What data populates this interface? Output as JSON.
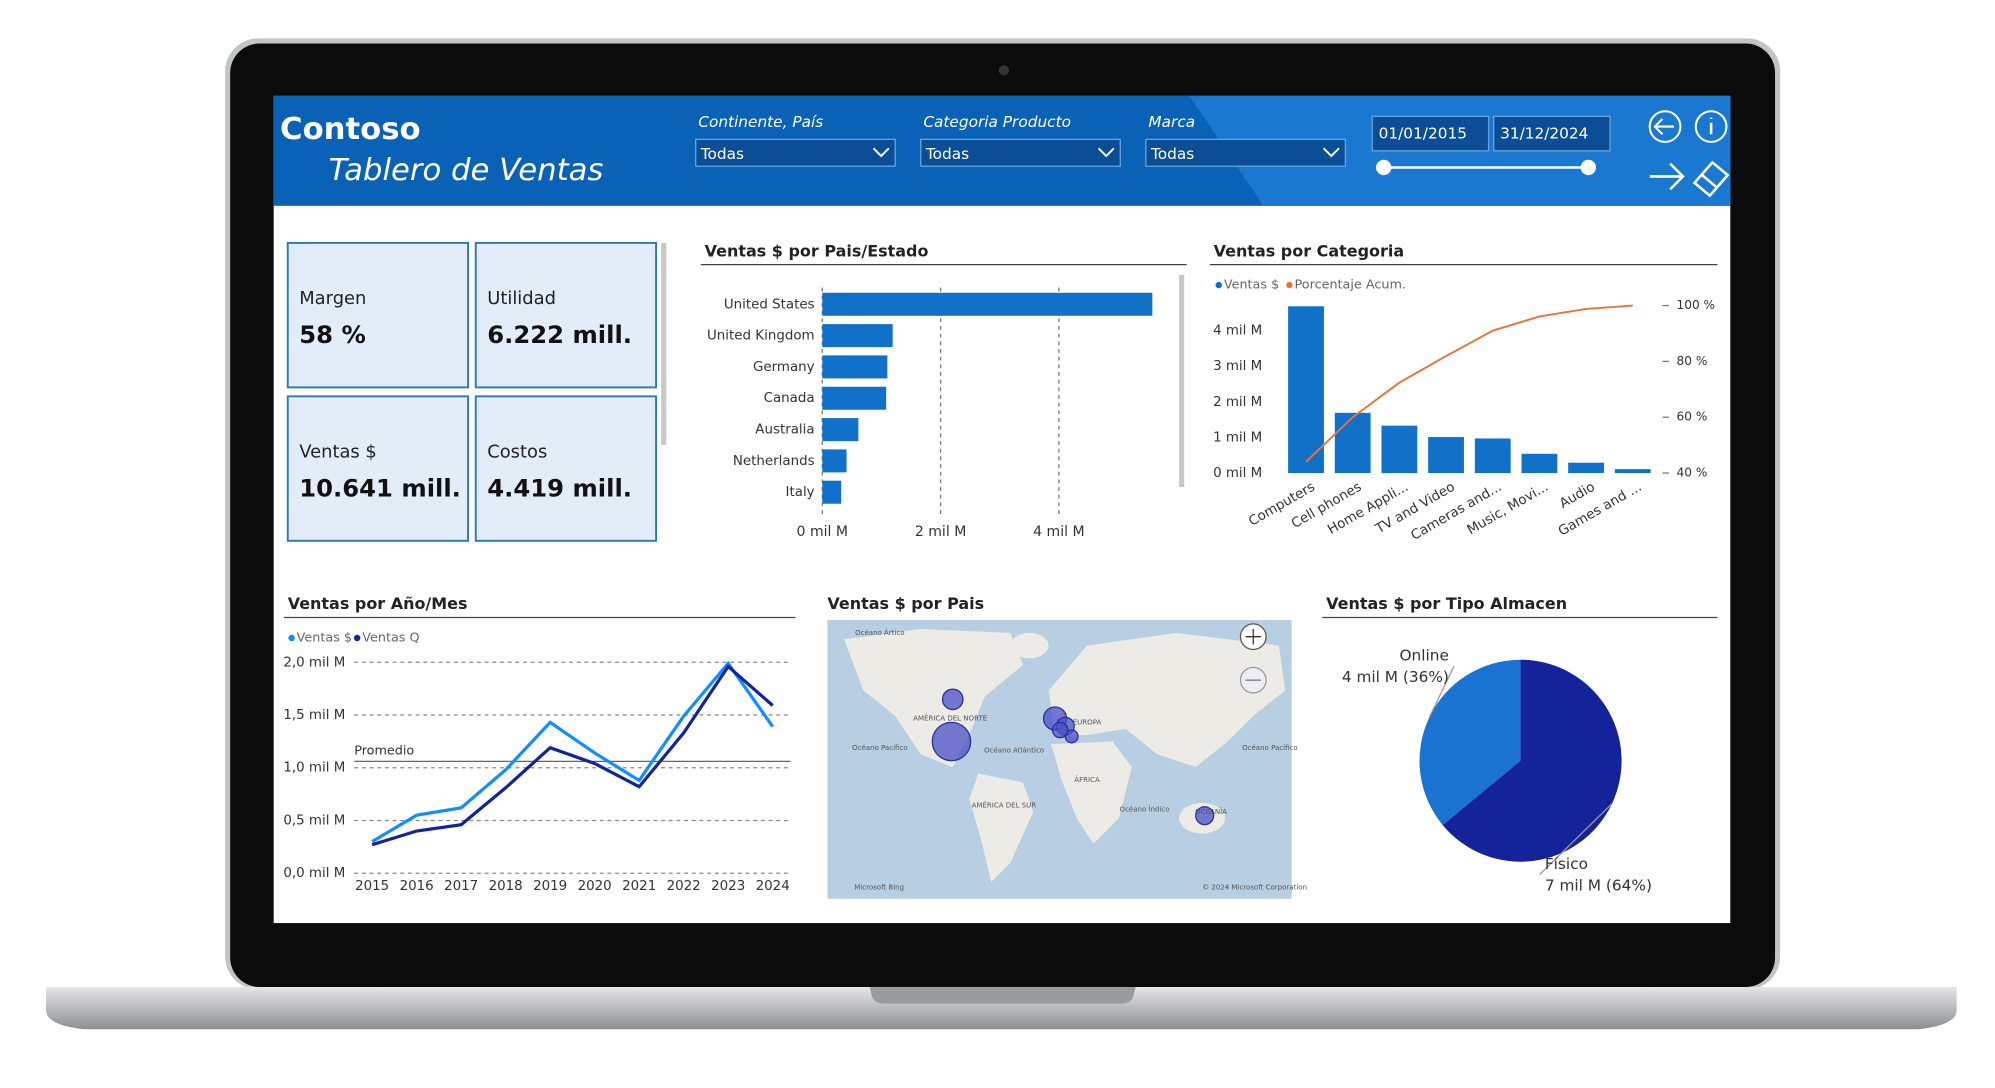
{
  "header": {
    "logo": "Contoso",
    "title": "Tablero de Ventas"
  },
  "filters": [
    {
      "label": "Continente, País",
      "value": "Todas"
    },
    {
      "label": "Categoria Producto",
      "value": "Todas"
    },
    {
      "label": "Marca",
      "value": "Todas"
    }
  ],
  "date_range": [
    "01/01/2015",
    "31/12/2024"
  ],
  "kpis": [
    {
      "label": "Margen",
      "value": "58 %"
    },
    {
      "label": "Utilidad",
      "value": "6.222 mill."
    },
    {
      "label": "Ventas $",
      "value": "10.641 mill."
    },
    {
      "label": "Costos",
      "value": "4.419 mill."
    }
  ],
  "chart_data": [
    {
      "type": "bar",
      "horizontal": true,
      "title": "Ventas $ por Pais/Estado",
      "categories": [
        "United States",
        "United Kingdom",
        "Germany",
        "Canada",
        "Australia",
        "Netherlands",
        "Italy"
      ],
      "values": [
        5.58,
        1.19,
        1.1,
        1.08,
        0.61,
        0.41,
        0.32
      ],
      "color": "#1170c8",
      "xlim": [
        0,
        6
      ],
      "xticks": [
        {
          "value": 0,
          "label": "0 mil M"
        },
        {
          "value": 2,
          "label": "2 mil M"
        },
        {
          "value": 4,
          "label": "4 mil M"
        }
      ],
      "grid": true
    },
    {
      "type": "combo",
      "title": "Ventas por Categoria",
      "categories": [
        "Computers",
        "Cell phones",
        "Home Appli...",
        "TV and Video",
        "Cameras and...",
        "Music, Movi...",
        "Audio",
        "Games and ..."
      ],
      "series": [
        {
          "name": "Ventas $",
          "type": "bar",
          "color": "#1170c8",
          "values": [
            4.68,
            1.69,
            1.33,
            1.01,
            0.97,
            0.54,
            0.29,
            0.11
          ]
        },
        {
          "name": "Porcentaje Acum.",
          "type": "line",
          "axis": "y2",
          "color": "#e8743b",
          "values": [
            44,
            60,
            72.4,
            81.9,
            91,
            96.1,
            98.8,
            100
          ]
        }
      ],
      "ylim": [
        0,
        4.7
      ],
      "yticks": [
        {
          "value": 0,
          "label": "0 mil M"
        },
        {
          "value": 1,
          "label": "1 mil M"
        },
        {
          "value": 2,
          "label": "2 mil M"
        },
        {
          "value": 3,
          "label": "3 mil M"
        },
        {
          "value": 4,
          "label": "4 mil M"
        }
      ],
      "y2lim": [
        40,
        100
      ],
      "y2ticks": [
        {
          "value": 40,
          "label": "40 %"
        },
        {
          "value": 60,
          "label": "60 %"
        },
        {
          "value": 80,
          "label": "80 %"
        },
        {
          "value": 100,
          "label": "100 %"
        }
      ]
    },
    {
      "type": "line",
      "title": "Ventas por Año/Mes",
      "categories": [
        "2015",
        "2016",
        "2017",
        "2018",
        "2019",
        "2020",
        "2021",
        "2022",
        "2023",
        "2024"
      ],
      "series": [
        {
          "name": "Ventas $",
          "color": "#118dff",
          "values": [
            0.3,
            0.55,
            0.62,
            0.98,
            1.43,
            1.14,
            0.88,
            1.49,
            1.99,
            1.39
          ]
        },
        {
          "name": "Ventas Q",
          "color": "#12239e",
          "values": [
            0.27,
            0.4,
            0.46,
            0.81,
            1.19,
            1.04,
            0.82,
            1.33,
            1.96,
            1.59
          ]
        }
      ],
      "ylim": [
        0,
        2.1
      ],
      "yticks": [
        {
          "value": 0,
          "label": "0,0 mil M"
        },
        {
          "value": 0.5,
          "label": "0,5 mil M"
        },
        {
          "value": 1,
          "label": "1,0 mil M"
        },
        {
          "value": 1.5,
          "label": "1,5 mil M"
        },
        {
          "value": 2,
          "label": "2,0 mil M"
        }
      ],
      "grid": true,
      "average": {
        "label": "Promedio",
        "value": 1.06
      }
    },
    {
      "type": "map",
      "title": "Ventas $ por Pais",
      "labels": [
        "Océano Ártico",
        "AMÉRICA DEL NORTE",
        "EUROPA",
        "Océano Pacífico",
        "Océano Atlántico",
        "ÁFRICA",
        "AMÉRICA DEL SUR",
        "Océano Índico",
        "OCEANÍA",
        "Océano Pacífico",
        "Microsoft Bing",
        "© 2024 Microsoft Corporation"
      ]
    },
    {
      "type": "pie",
      "title": "Ventas $ por Tipo Almacen",
      "categories": [
        "Online",
        "Físico"
      ],
      "values": [
        3.83,
        6.81
      ],
      "value_labels": [
        "4 mil M (36%)",
        "7 mil M (64%)"
      ],
      "colors": [
        "#1a73d1",
        "#14239a"
      ],
      "direction": "counterclockwise"
    }
  ]
}
